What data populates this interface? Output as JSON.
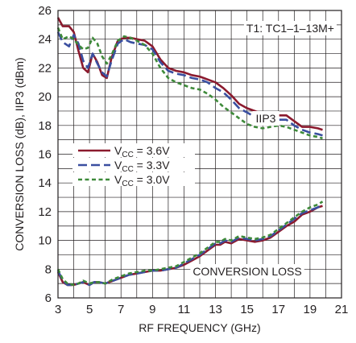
{
  "chart_data": {
    "type": "line",
    "xlabel": "RF FREQUENCY (GHz)",
    "ylabel": "CONVERSION LOSS (dB), IIP3 (dBm)",
    "xlim": [
      3,
      21
    ],
    "ylim": [
      6,
      26
    ],
    "x_ticks": [
      "3",
      "5",
      "7",
      "9",
      "11",
      "13",
      "15",
      "17",
      "19",
      "21"
    ],
    "y_ticks": [
      "6",
      "8",
      "10",
      "12",
      "14",
      "16",
      "18",
      "20",
      "22",
      "24",
      "26"
    ],
    "grid": true,
    "annotations": {
      "transformer": "T1: TC1–1–13M+",
      "iip3": "IIP3",
      "conversion_loss": "CONVERSION LOSS"
    },
    "legend": {
      "placement": "center-left",
      "entries": [
        {
          "prefix": "V",
          "sub": "CC",
          "suffix": " = 3.6V",
          "color": "#8b1a2e",
          "dash": "solid"
        },
        {
          "prefix": "V",
          "sub": "CC",
          "suffix": " = 3.3V",
          "color": "#3a4fa0",
          "dash": "longdash"
        },
        {
          "prefix": "V",
          "sub": "CC",
          "suffix": " = 3.0V",
          "color": "#3e8a3a",
          "dash": "shortdash"
        }
      ]
    },
    "series": [
      {
        "name": "VCC = 3.6V, IIP3",
        "color": "#8b1a2e",
        "dash": "solid",
        "points": [
          [
            3,
            25.5
          ],
          [
            3.3,
            24.9
          ],
          [
            3.7,
            24.9
          ],
          [
            4,
            24.5
          ],
          [
            4.3,
            23.2
          ],
          [
            4.6,
            22
          ],
          [
            4.9,
            21.7
          ],
          [
            5.2,
            23
          ],
          [
            5.5,
            22.4
          ],
          [
            5.8,
            21.5
          ],
          [
            6.1,
            21.3
          ],
          [
            6.4,
            22.7
          ],
          [
            6.8,
            23.9
          ],
          [
            7.2,
            24.1
          ],
          [
            7.6,
            24.1
          ],
          [
            8,
            24
          ],
          [
            8.5,
            23.9
          ],
          [
            9,
            23.5
          ],
          [
            9.5,
            22.6
          ],
          [
            10,
            22
          ],
          [
            10.5,
            21.8
          ],
          [
            11,
            21.7
          ],
          [
            11.5,
            21.5
          ],
          [
            12,
            21.4
          ],
          [
            12.5,
            21.2
          ],
          [
            13,
            21
          ],
          [
            13.5,
            20.6
          ],
          [
            14,
            20.1
          ],
          [
            14.5,
            19.5
          ],
          [
            15,
            19.2
          ],
          [
            15.5,
            19
          ],
          [
            16,
            18.8
          ],
          [
            16.5,
            18.7
          ],
          [
            17,
            18.7
          ],
          [
            17.5,
            18.7
          ],
          [
            18,
            18.3
          ],
          [
            18.5,
            17.9
          ],
          [
            19,
            17.9
          ],
          [
            19.5,
            17.8
          ],
          [
            19.8,
            17.7
          ]
        ]
      },
      {
        "name": "VCC = 3.3V, IIP3",
        "color": "#3a4fa0",
        "dash": "longdash",
        "points": [
          [
            3,
            24.5
          ],
          [
            3.3,
            23.8
          ],
          [
            3.7,
            23.5
          ],
          [
            4,
            24.3
          ],
          [
            4.3,
            23.7
          ],
          [
            4.6,
            22.5
          ],
          [
            4.9,
            22
          ],
          [
            5.2,
            23
          ],
          [
            5.5,
            22.3
          ],
          [
            5.8,
            21.7
          ],
          [
            6.1,
            21.4
          ],
          [
            6.4,
            22.5
          ],
          [
            6.8,
            23.7
          ],
          [
            7.2,
            24
          ],
          [
            7.6,
            23.8
          ],
          [
            8,
            23.7
          ],
          [
            8.5,
            23.6
          ],
          [
            9,
            23.3
          ],
          [
            9.5,
            22.4
          ],
          [
            10,
            21.8
          ],
          [
            10.5,
            21.6
          ],
          [
            11,
            21.5
          ],
          [
            11.5,
            21.3
          ],
          [
            12,
            21.2
          ],
          [
            12.5,
            21
          ],
          [
            13,
            20.6
          ],
          [
            13.5,
            20.3
          ],
          [
            14,
            19.8
          ],
          [
            14.5,
            19.2
          ],
          [
            15,
            18.9
          ],
          [
            15.5,
            18.6
          ],
          [
            16,
            18.4
          ],
          [
            16.5,
            18.3
          ],
          [
            17,
            18.4
          ],
          [
            17.5,
            18.4
          ],
          [
            18,
            18
          ],
          [
            18.5,
            17.7
          ],
          [
            19,
            17.5
          ],
          [
            19.5,
            17.4
          ],
          [
            19.8,
            17.3
          ]
        ]
      },
      {
        "name": "VCC = 3.0V, IIP3",
        "color": "#3e8a3a",
        "dash": "shortdash",
        "points": [
          [
            3,
            24.8
          ],
          [
            3.3,
            24
          ],
          [
            3.7,
            24.2
          ],
          [
            4,
            24
          ],
          [
            4.3,
            23.6
          ],
          [
            4.6,
            23.3
          ],
          [
            4.9,
            23.4
          ],
          [
            5.2,
            24.1
          ],
          [
            5.5,
            23.7
          ],
          [
            5.8,
            22.8
          ],
          [
            6.1,
            22.3
          ],
          [
            6.4,
            22.9
          ],
          [
            6.8,
            23.9
          ],
          [
            7.2,
            24.2
          ],
          [
            7.6,
            24.1
          ],
          [
            8,
            23.9
          ],
          [
            8.5,
            23.6
          ],
          [
            9,
            23
          ],
          [
            9.5,
            22
          ],
          [
            10,
            21.3
          ],
          [
            10.5,
            21
          ],
          [
            11,
            20.8
          ],
          [
            11.5,
            20.6
          ],
          [
            12,
            20.5
          ],
          [
            12.5,
            20.2
          ],
          [
            13,
            19.8
          ],
          [
            13.5,
            19.3
          ],
          [
            14,
            18.9
          ],
          [
            14.5,
            18.5
          ],
          [
            15,
            18.1
          ],
          [
            15.5,
            17.9
          ],
          [
            16,
            17.8
          ],
          [
            16.5,
            17.9
          ],
          [
            17,
            18
          ],
          [
            17.5,
            17.9
          ],
          [
            18,
            17.7
          ],
          [
            18.5,
            17.5
          ],
          [
            19,
            17.3
          ],
          [
            19.5,
            17.2
          ],
          [
            19.8,
            17.1
          ]
        ]
      },
      {
        "name": "VCC = 3.6V, Conversion Loss",
        "color": "#8b1a2e",
        "dash": "solid",
        "points": [
          [
            3,
            7.8
          ],
          [
            3.3,
            7.1
          ],
          [
            3.6,
            6.9
          ],
          [
            4,
            6.9
          ],
          [
            4.3,
            7.0
          ],
          [
            4.6,
            7.1
          ],
          [
            5,
            6.9
          ],
          [
            5.3,
            7.1
          ],
          [
            5.6,
            7.1
          ],
          [
            6,
            7.0
          ],
          [
            6.5,
            7.2
          ],
          [
            7,
            7.4
          ],
          [
            7.5,
            7.6
          ],
          [
            8,
            7.7
          ],
          [
            8.5,
            7.8
          ],
          [
            9,
            7.9
          ],
          [
            9.5,
            7.9
          ],
          [
            10,
            8.0
          ],
          [
            10.5,
            8.1
          ],
          [
            11,
            8.3
          ],
          [
            11.5,
            8.6
          ],
          [
            12,
            8.9
          ],
          [
            12.5,
            9.3
          ],
          [
            13,
            9.7
          ],
          [
            13.3,
            9.7
          ],
          [
            13.6,
            9.9
          ],
          [
            14,
            9.8
          ],
          [
            14.5,
            10.1
          ],
          [
            15,
            10.0
          ],
          [
            15.5,
            9.9
          ],
          [
            16,
            10.0
          ],
          [
            16.5,
            10.2
          ],
          [
            17,
            10.6
          ],
          [
            17.5,
            11.0
          ],
          [
            18,
            11.3
          ],
          [
            18.5,
            11.8
          ],
          [
            19,
            12.0
          ],
          [
            19.5,
            12.3
          ],
          [
            19.8,
            12.4
          ]
        ]
      },
      {
        "name": "VCC = 3.3V, Conversion Loss",
        "color": "#3a4fa0",
        "dash": "longdash",
        "points": [
          [
            3,
            7.9
          ],
          [
            3.3,
            7.2
          ],
          [
            3.6,
            6.9
          ],
          [
            4,
            6.9
          ],
          [
            4.3,
            7.0
          ],
          [
            4.6,
            7.1
          ],
          [
            5,
            6.9
          ],
          [
            5.3,
            7.1
          ],
          [
            5.6,
            7.1
          ],
          [
            6,
            7.0
          ],
          [
            6.5,
            7.2
          ],
          [
            7,
            7.4
          ],
          [
            7.5,
            7.6
          ],
          [
            8,
            7.7
          ],
          [
            8.5,
            7.8
          ],
          [
            9,
            7.9
          ],
          [
            9.5,
            7.9
          ],
          [
            10,
            8.0
          ],
          [
            10.5,
            8.1
          ],
          [
            11,
            8.4
          ],
          [
            11.5,
            8.7
          ],
          [
            12,
            9.0
          ],
          [
            12.5,
            9.4
          ],
          [
            13,
            9.8
          ],
          [
            13.3,
            9.8
          ],
          [
            13.6,
            10.0
          ],
          [
            14,
            9.9
          ],
          [
            14.5,
            10.2
          ],
          [
            15,
            10.1
          ],
          [
            15.5,
            10.0
          ],
          [
            16,
            10.1
          ],
          [
            16.5,
            10.3
          ],
          [
            17,
            10.7
          ],
          [
            17.5,
            11.1
          ],
          [
            18,
            11.5
          ],
          [
            18.5,
            11.9
          ],
          [
            19,
            12.1
          ],
          [
            19.5,
            12.3
          ],
          [
            19.8,
            12.5
          ]
        ]
      },
      {
        "name": "VCC = 3.0V, Conversion Loss",
        "color": "#3e8a3a",
        "dash": "shortdash",
        "points": [
          [
            3,
            8.0
          ],
          [
            3.3,
            7.3
          ],
          [
            3.6,
            7.0
          ],
          [
            4,
            6.9
          ],
          [
            4.3,
            7.0
          ],
          [
            4.6,
            7.2
          ],
          [
            5,
            7.0
          ],
          [
            5.3,
            7.1
          ],
          [
            5.6,
            7.1
          ],
          [
            6,
            7.0
          ],
          [
            6.5,
            7.3
          ],
          [
            7,
            7.5
          ],
          [
            7.5,
            7.7
          ],
          [
            8,
            7.8
          ],
          [
            8.5,
            7.9
          ],
          [
            9,
            7.9
          ],
          [
            9.5,
            8.0
          ],
          [
            10,
            8.1
          ],
          [
            10.5,
            8.2
          ],
          [
            11,
            8.5
          ],
          [
            11.5,
            8.8
          ],
          [
            12,
            9.1
          ],
          [
            12.5,
            9.5
          ],
          [
            13,
            9.9
          ],
          [
            13.3,
            9.9
          ],
          [
            13.6,
            10.1
          ],
          [
            14,
            10.0
          ],
          [
            14.5,
            10.3
          ],
          [
            15,
            10.2
          ],
          [
            15.5,
            10.1
          ],
          [
            16,
            10.2
          ],
          [
            16.5,
            10.4
          ],
          [
            17,
            10.8
          ],
          [
            17.5,
            11.2
          ],
          [
            18,
            11.6
          ],
          [
            18.5,
            12.0
          ],
          [
            19,
            12.3
          ],
          [
            19.5,
            12.5
          ],
          [
            19.8,
            12.7
          ]
        ]
      }
    ]
  }
}
